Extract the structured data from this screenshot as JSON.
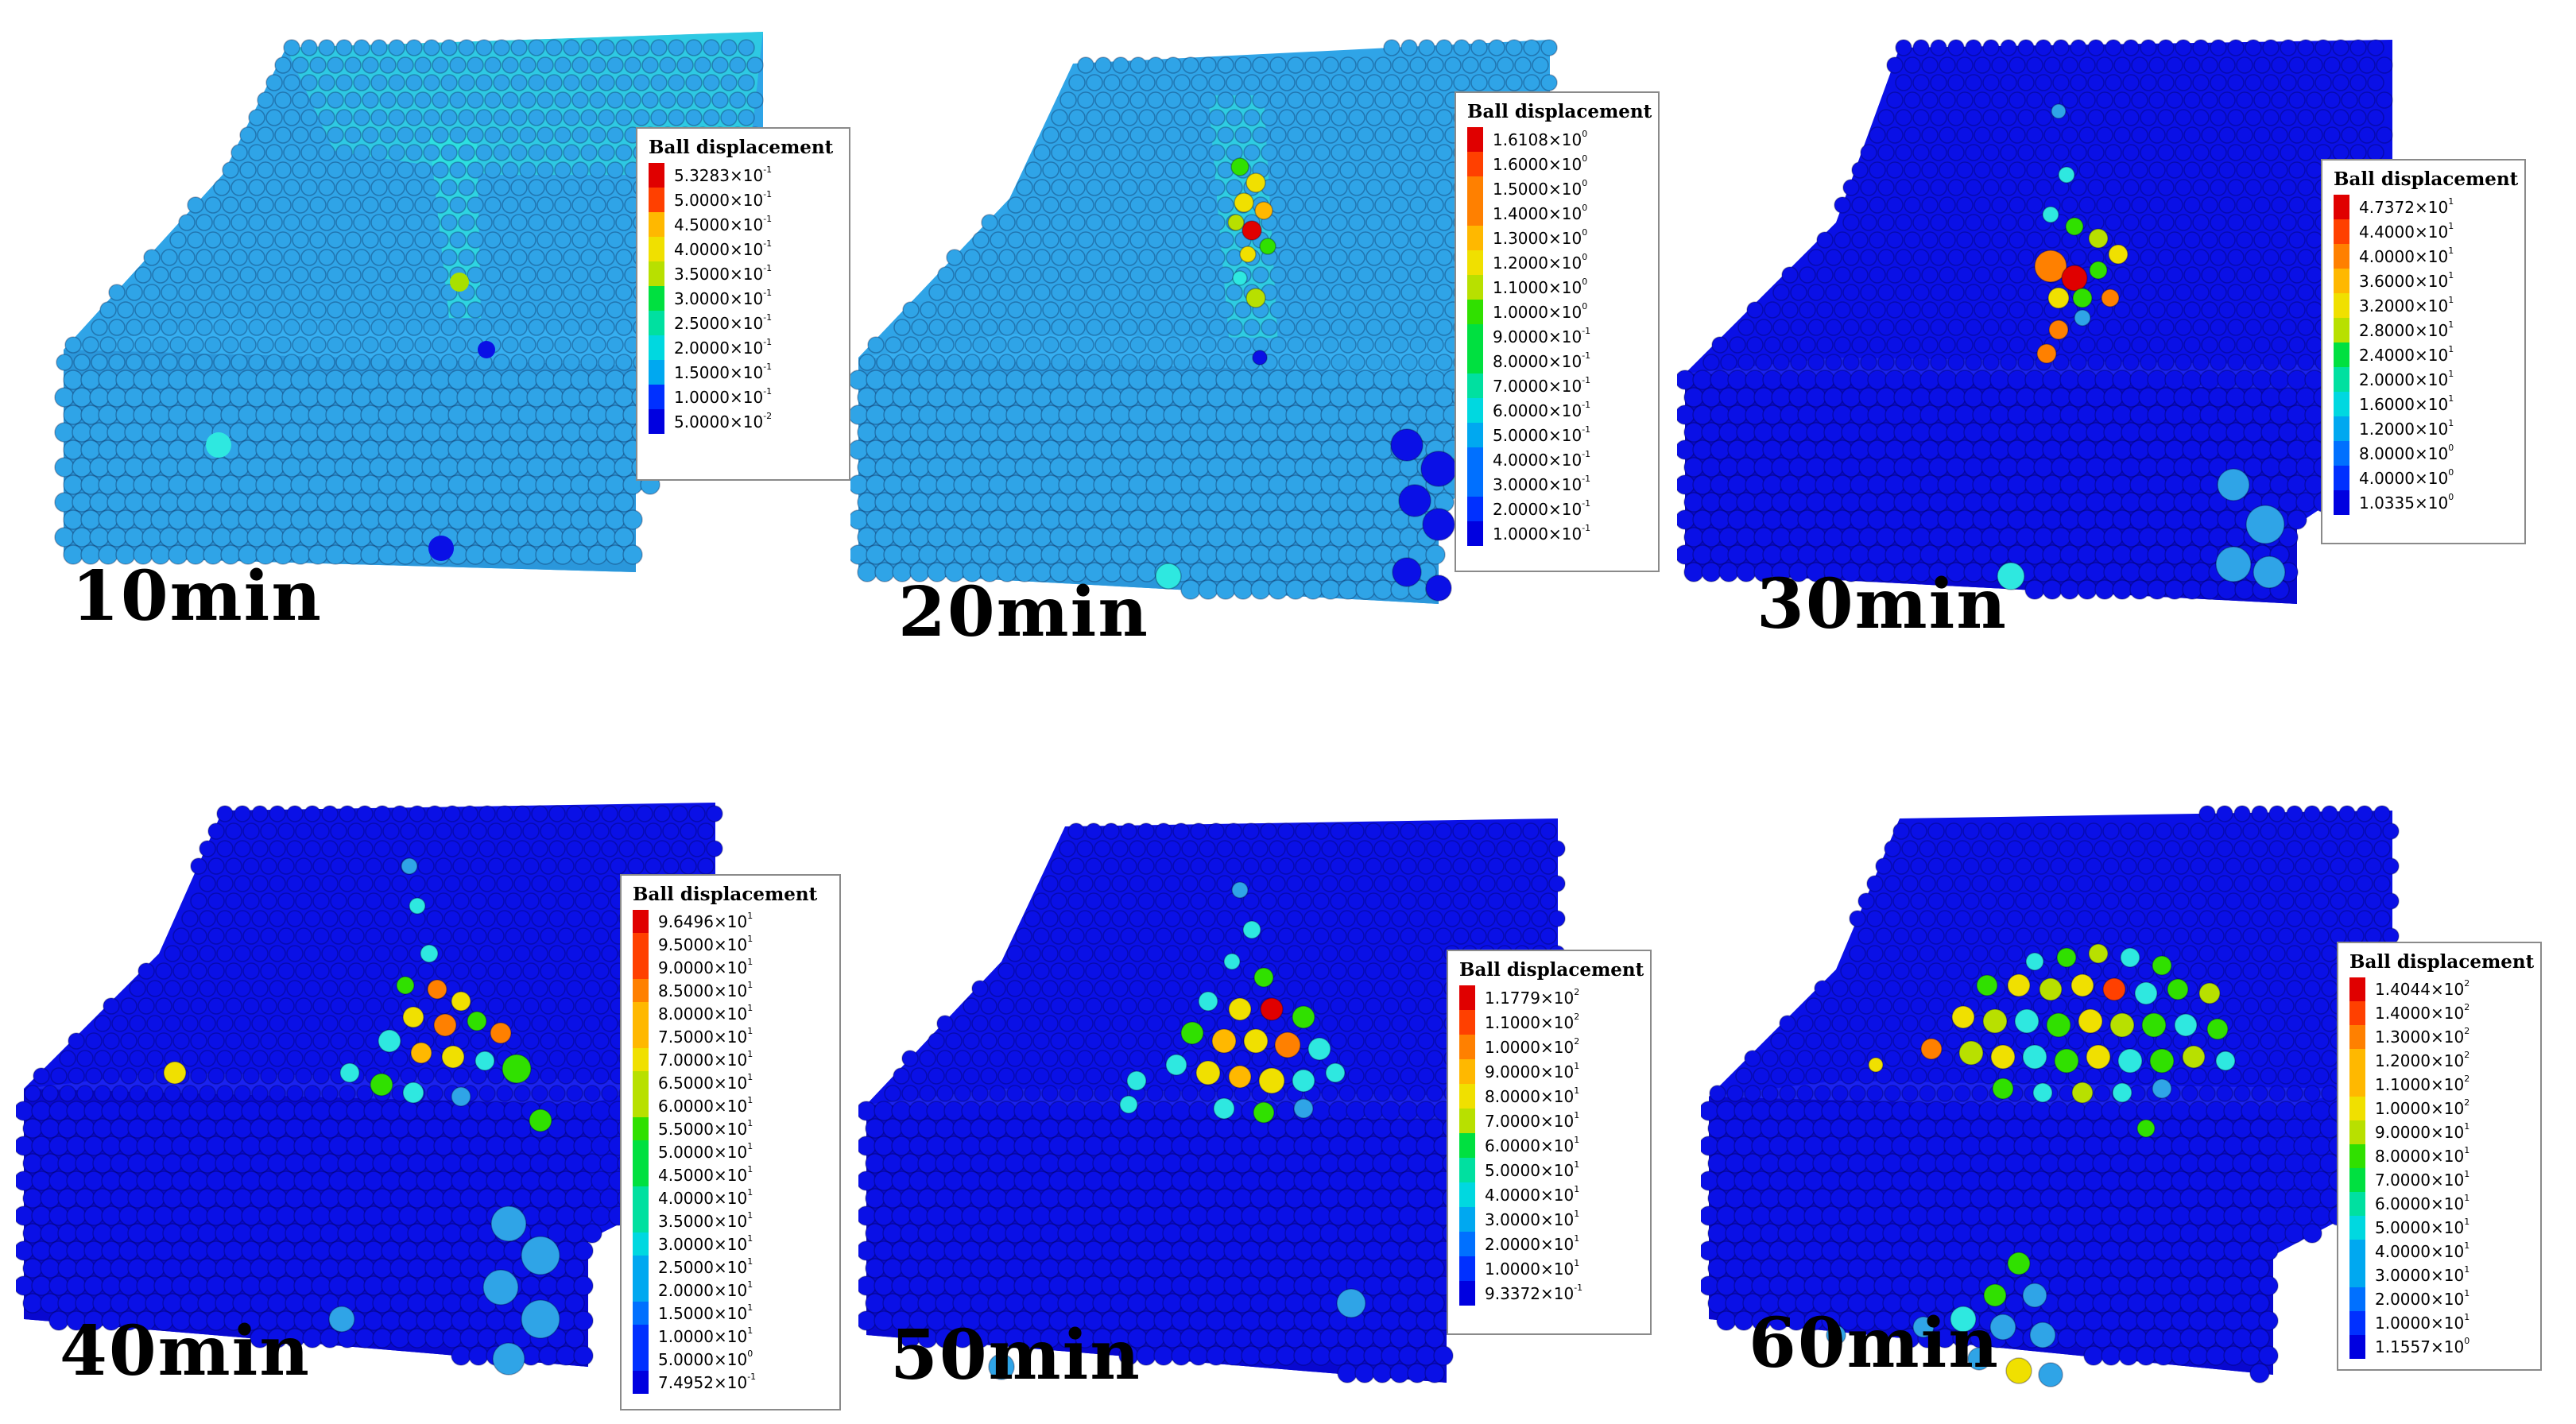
{
  "legend_title": "Ball displacement",
  "colors": {
    "background_ball": "#2fa4e7",
    "deep_ball": "#0a10e6",
    "cyan_ball": "#2ee8e0",
    "ramp": [
      "#e00000",
      "#ff4000",
      "#ff8000",
      "#ffb800",
      "#f0e000",
      "#b8e000",
      "#30e000",
      "#00e040",
      "#00e0a0",
      "#00d8e0",
      "#00a8f0",
      "#0070ff",
      "#0030ff",
      "#0000e0"
    ]
  },
  "panels": [
    {
      "time": "10min",
      "base_color": "#2fa4e7",
      "legend": [
        {
          "m": "5.3283",
          "e": "-1"
        },
        {
          "m": "5.0000",
          "e": "-1"
        },
        {
          "m": "4.5000",
          "e": "-1"
        },
        {
          "m": "4.0000",
          "e": "-1"
        },
        {
          "m": "3.5000",
          "e": "-1"
        },
        {
          "m": "3.0000",
          "e": "-1"
        },
        {
          "m": "2.5000",
          "e": "-1"
        },
        {
          "m": "2.0000",
          "e": "-1"
        },
        {
          "m": "1.5000",
          "e": "-1"
        },
        {
          "m": "1.0000",
          "e": "-1"
        },
        {
          "m": "5.0000",
          "e": "-2"
        }
      ]
    },
    {
      "time": "20min",
      "base_color": "#2fa4e7",
      "legend": [
        {
          "m": "1.6108",
          "e": "0"
        },
        {
          "m": "1.6000",
          "e": "0"
        },
        {
          "m": "1.5000",
          "e": "0"
        },
        {
          "m": "1.4000",
          "e": "0"
        },
        {
          "m": "1.3000",
          "e": "0"
        },
        {
          "m": "1.2000",
          "e": "0"
        },
        {
          "m": "1.1000",
          "e": "0"
        },
        {
          "m": "1.0000",
          "e": "0"
        },
        {
          "m": "9.0000",
          "e": "-1"
        },
        {
          "m": "8.0000",
          "e": "-1"
        },
        {
          "m": "7.0000",
          "e": "-1"
        },
        {
          "m": "6.0000",
          "e": "-1"
        },
        {
          "m": "5.0000",
          "e": "-1"
        },
        {
          "m": "4.0000",
          "e": "-1"
        },
        {
          "m": "3.0000",
          "e": "-1"
        },
        {
          "m": "2.0000",
          "e": "-1"
        },
        {
          "m": "1.0000",
          "e": "-1"
        }
      ]
    },
    {
      "time": "30min",
      "base_color": "#0a10e6",
      "legend": [
        {
          "m": "4.7372",
          "e": "1"
        },
        {
          "m": "4.4000",
          "e": "1"
        },
        {
          "m": "4.0000",
          "e": "1"
        },
        {
          "m": "3.6000",
          "e": "1"
        },
        {
          "m": "3.2000",
          "e": "1"
        },
        {
          "m": "2.8000",
          "e": "1"
        },
        {
          "m": "2.4000",
          "e": "1"
        },
        {
          "m": "2.0000",
          "e": "1"
        },
        {
          "m": "1.6000",
          "e": "1"
        },
        {
          "m": "1.2000",
          "e": "1"
        },
        {
          "m": "8.0000",
          "e": "0"
        },
        {
          "m": "4.0000",
          "e": "0"
        },
        {
          "m": "1.0335",
          "e": "0"
        }
      ]
    },
    {
      "time": "40min",
      "base_color": "#0a10e6",
      "legend": [
        {
          "m": "9.6496",
          "e": "1"
        },
        {
          "m": "9.5000",
          "e": "1"
        },
        {
          "m": "9.0000",
          "e": "1"
        },
        {
          "m": "8.5000",
          "e": "1"
        },
        {
          "m": "8.0000",
          "e": "1"
        },
        {
          "m": "7.5000",
          "e": "1"
        },
        {
          "m": "7.0000",
          "e": "1"
        },
        {
          "m": "6.5000",
          "e": "1"
        },
        {
          "m": "6.0000",
          "e": "1"
        },
        {
          "m": "5.5000",
          "e": "1"
        },
        {
          "m": "5.0000",
          "e": "1"
        },
        {
          "m": "4.5000",
          "e": "1"
        },
        {
          "m": "4.0000",
          "e": "1"
        },
        {
          "m": "3.5000",
          "e": "1"
        },
        {
          "m": "3.0000",
          "e": "1"
        },
        {
          "m": "2.5000",
          "e": "1"
        },
        {
          "m": "2.0000",
          "e": "1"
        },
        {
          "m": "1.5000",
          "e": "1"
        },
        {
          "m": "1.0000",
          "e": "1"
        },
        {
          "m": "5.0000",
          "e": "0"
        },
        {
          "m": "7.4952",
          "e": "-1"
        }
      ]
    },
    {
      "time": "50min",
      "base_color": "#0a10e6",
      "legend": [
        {
          "m": "1.1779",
          "e": "2"
        },
        {
          "m": "1.1000",
          "e": "2"
        },
        {
          "m": "1.0000",
          "e": "2"
        },
        {
          "m": "9.0000",
          "e": "1"
        },
        {
          "m": "8.0000",
          "e": "1"
        },
        {
          "m": "7.0000",
          "e": "1"
        },
        {
          "m": "6.0000",
          "e": "1"
        },
        {
          "m": "5.0000",
          "e": "1"
        },
        {
          "m": "4.0000",
          "e": "1"
        },
        {
          "m": "3.0000",
          "e": "1"
        },
        {
          "m": "2.0000",
          "e": "1"
        },
        {
          "m": "1.0000",
          "e": "1"
        },
        {
          "m": "9.3372",
          "e": "-1"
        }
      ]
    },
    {
      "time": "60min",
      "base_color": "#0a10e6",
      "legend": [
        {
          "m": "1.4044",
          "e": "2"
        },
        {
          "m": "1.4000",
          "e": "2"
        },
        {
          "m": "1.3000",
          "e": "2"
        },
        {
          "m": "1.2000",
          "e": "2"
        },
        {
          "m": "1.1000",
          "e": "2"
        },
        {
          "m": "1.0000",
          "e": "2"
        },
        {
          "m": "9.0000",
          "e": "1"
        },
        {
          "m": "8.0000",
          "e": "1"
        },
        {
          "m": "7.0000",
          "e": "1"
        },
        {
          "m": "6.0000",
          "e": "1"
        },
        {
          "m": "5.0000",
          "e": "1"
        },
        {
          "m": "4.0000",
          "e": "1"
        },
        {
          "m": "3.0000",
          "e": "1"
        },
        {
          "m": "2.0000",
          "e": "1"
        },
        {
          "m": "1.0000",
          "e": "1"
        },
        {
          "m": "1.1557",
          "e": "0"
        }
      ]
    }
  ]
}
